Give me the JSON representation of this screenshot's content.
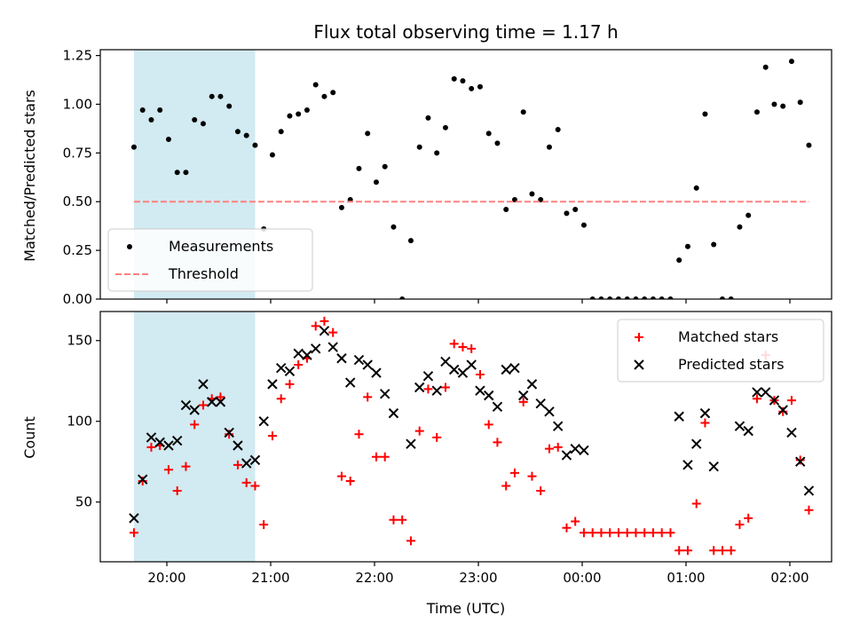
{
  "chart_data": {
    "type": "scatter",
    "title": "Flux total observing time = 1.17 h",
    "xlabel": "Time (UTC)",
    "x_tick_labels": [
      "20:00",
      "21:00",
      "22:00",
      "23:00",
      "00:00",
      "01:00",
      "02:00"
    ],
    "shaded_interval": {
      "start": "19:41",
      "end": "20:51",
      "color": "#add8e6"
    },
    "panels": [
      {
        "ylabel": "Matched/Predicted stars",
        "ylim": [
          0,
          1.28
        ],
        "y_tick_labels": [
          "0.00",
          "0.25",
          "0.50",
          "0.75",
          "1.00",
          "1.25"
        ],
        "legend": {
          "position": "lower-left",
          "entries": [
            "Measurements",
            "Threshold"
          ]
        },
        "series": [
          {
            "name": "Measurements",
            "style": "dot",
            "color": "#000000",
            "points": [
              [
                "19:41",
                0.78
              ],
              [
                "19:46",
                0.97
              ],
              [
                "19:51",
                0.92
              ],
              [
                "19:56",
                0.97
              ],
              [
                "20:01",
                0.82
              ],
              [
                "20:06",
                0.65
              ],
              [
                "20:11",
                0.65
              ],
              [
                "20:16",
                0.92
              ],
              [
                "20:21",
                0.9
              ],
              [
                "20:26",
                1.04
              ],
              [
                "20:31",
                1.04
              ],
              [
                "20:36",
                0.99
              ],
              [
                "20:41",
                0.86
              ],
              [
                "20:46",
                0.84
              ],
              [
                "20:51",
                0.79
              ],
              [
                "20:56",
                0.36
              ],
              [
                "21:01",
                0.74
              ],
              [
                "21:06",
                0.86
              ],
              [
                "21:11",
                0.94
              ],
              [
                "21:16",
                0.95
              ],
              [
                "21:21",
                0.97
              ],
              [
                "21:26",
                1.1
              ],
              [
                "21:31",
                1.04
              ],
              [
                "21:36",
                1.06
              ],
              [
                "21:41",
                0.47
              ],
              [
                "21:46",
                0.51
              ],
              [
                "21:51",
                0.67
              ],
              [
                "21:56",
                0.85
              ],
              [
                "22:01",
                0.6
              ],
              [
                "22:06",
                0.68
              ],
              [
                "22:11",
                0.37
              ],
              [
                "22:16",
                0.0
              ],
              [
                "22:21",
                0.3
              ],
              [
                "22:26",
                0.78
              ],
              [
                "22:31",
                0.93
              ],
              [
                "22:36",
                0.75
              ],
              [
                "22:41",
                0.88
              ],
              [
                "22:46",
                1.13
              ],
              [
                "22:51",
                1.12
              ],
              [
                "22:56",
                1.08
              ],
              [
                "23:01",
                1.09
              ],
              [
                "23:06",
                0.85
              ],
              [
                "23:11",
                0.8
              ],
              [
                "23:16",
                0.46
              ],
              [
                "23:21",
                0.51
              ],
              [
                "23:26",
                0.96
              ],
              [
                "23:31",
                0.54
              ],
              [
                "23:36",
                0.51
              ],
              [
                "23:41",
                0.78
              ],
              [
                "23:46",
                0.87
              ],
              [
                "23:51",
                0.44
              ],
              [
                "23:56",
                0.46
              ],
              [
                "00:01",
                0.38
              ],
              [
                "00:06",
                0.0
              ],
              [
                "00:11",
                0.0
              ],
              [
                "00:16",
                0.0
              ],
              [
                "00:21",
                0.0
              ],
              [
                "00:26",
                0.0
              ],
              [
                "00:31",
                0.0
              ],
              [
                "00:36",
                0.0
              ],
              [
                "00:41",
                0.0
              ],
              [
                "00:46",
                0.0
              ],
              [
                "00:51",
                0.0
              ],
              [
                "00:56",
                0.2
              ],
              [
                "01:01",
                0.27
              ],
              [
                "01:06",
                0.57
              ],
              [
                "01:11",
                0.95
              ],
              [
                "01:16",
                0.28
              ],
              [
                "01:21",
                0.0
              ],
              [
                "01:26",
                0.0
              ],
              [
                "01:31",
                0.37
              ],
              [
                "01:36",
                0.43
              ],
              [
                "01:41",
                0.96
              ],
              [
                "01:46",
                1.19
              ],
              [
                "01:51",
                1.0
              ],
              [
                "01:56",
                0.99
              ],
              [
                "02:01",
                1.22
              ],
              [
                "02:06",
                1.01
              ],
              [
                "02:11",
                0.79
              ]
            ]
          },
          {
            "name": "Threshold",
            "style": "dashed-line",
            "color": "#ff8080",
            "points": [
              [
                "19:41",
                0.5
              ],
              [
                "02:11",
                0.5
              ]
            ]
          }
        ]
      },
      {
        "ylabel": "Count",
        "ylim": [
          13,
          168
        ],
        "y_tick_labels": [
          "50",
          "100",
          "150"
        ],
        "legend": {
          "position": "upper-right",
          "entries": [
            "Matched stars",
            "Predicted stars"
          ]
        },
        "series": [
          {
            "name": "Matched stars",
            "style": "plus",
            "color": "#ff0000",
            "points": [
              [
                "19:41",
                31
              ],
              [
                "19:46",
                63
              ],
              [
                "19:51",
                84
              ],
              [
                "19:56",
                85
              ],
              [
                "20:01",
                70
              ],
              [
                "20:06",
                57
              ],
              [
                "20:11",
                72
              ],
              [
                "20:16",
                98
              ],
              [
                "20:21",
                110
              ],
              [
                "20:26",
                114
              ],
              [
                "20:31",
                115
              ],
              [
                "20:36",
                92
              ],
              [
                "20:41",
                73
              ],
              [
                "20:46",
                62
              ],
              [
                "20:51",
                60
              ],
              [
                "20:56",
                36
              ],
              [
                "21:01",
                91
              ],
              [
                "21:06",
                114
              ],
              [
                "21:11",
                123
              ],
              [
                "21:16",
                135
              ],
              [
                "21:21",
                139
              ],
              [
                "21:26",
                159
              ],
              [
                "21:31",
                162
              ],
              [
                "21:36",
                155
              ],
              [
                "21:41",
                66
              ],
              [
                "21:46",
                63
              ],
              [
                "21:51",
                92
              ],
              [
                "21:56",
                115
              ],
              [
                "22:01",
                78
              ],
              [
                "22:06",
                78
              ],
              [
                "22:11",
                39
              ],
              [
                "22:16",
                39
              ],
              [
                "22:21",
                26
              ],
              [
                "22:26",
                94
              ],
              [
                "22:31",
                120
              ],
              [
                "22:36",
                90
              ],
              [
                "22:41",
                121
              ],
              [
                "22:46",
                148
              ],
              [
                "22:51",
                146
              ],
              [
                "22:56",
                145
              ],
              [
                "23:01",
                129
              ],
              [
                "23:06",
                98
              ],
              [
                "23:11",
                87
              ],
              [
                "23:16",
                60
              ],
              [
                "23:21",
                68
              ],
              [
                "23:26",
                112
              ],
              [
                "23:31",
                66
              ],
              [
                "23:36",
                57
              ],
              [
                "23:41",
                83
              ],
              [
                "23:46",
                84
              ],
              [
                "23:51",
                34
              ],
              [
                "23:56",
                38
              ],
              [
                "00:01",
                31
              ],
              [
                "00:06",
                31
              ],
              [
                "00:11",
                31
              ],
              [
                "00:16",
                31
              ],
              [
                "00:21",
                31
              ],
              [
                "00:26",
                31
              ],
              [
                "00:31",
                31
              ],
              [
                "00:36",
                31
              ],
              [
                "00:41",
                31
              ],
              [
                "00:46",
                31
              ],
              [
                "00:51",
                31
              ],
              [
                "00:56",
                20
              ],
              [
                "01:01",
                20
              ],
              [
                "01:06",
                49
              ],
              [
                "01:11",
                99
              ],
              [
                "01:16",
                20
              ],
              [
                "01:21",
                20
              ],
              [
                "01:26",
                20
              ],
              [
                "01:31",
                36
              ],
              [
                "01:36",
                40
              ],
              [
                "01:41",
                114
              ],
              [
                "01:46",
                141
              ],
              [
                "01:51",
                113
              ],
              [
                "01:56",
                106
              ],
              [
                "02:01",
                113
              ],
              [
                "02:06",
                76
              ],
              [
                "02:11",
                45
              ]
            ]
          },
          {
            "name": "Predicted stars",
            "style": "x",
            "color": "#000000",
            "points": [
              [
                "19:41",
                40
              ],
              [
                "19:46",
                64
              ],
              [
                "19:51",
                90
              ],
              [
                "19:56",
                87
              ],
              [
                "20:01",
                85
              ],
              [
                "20:06",
                88
              ],
              [
                "20:11",
                110
              ],
              [
                "20:16",
                107
              ],
              [
                "20:21",
                123
              ],
              [
                "20:26",
                112
              ],
              [
                "20:31",
                112
              ],
              [
                "20:36",
                93
              ],
              [
                "20:41",
                85
              ],
              [
                "20:46",
                74
              ],
              [
                "20:51",
                76
              ],
              [
                "20:56",
                100
              ],
              [
                "21:01",
                123
              ],
              [
                "21:06",
                133
              ],
              [
                "21:11",
                131
              ],
              [
                "21:16",
                142
              ],
              [
                "21:21",
                141
              ],
              [
                "21:26",
                145
              ],
              [
                "21:31",
                156
              ],
              [
                "21:36",
                146
              ],
              [
                "21:41",
                139
              ],
              [
                "21:46",
                124
              ],
              [
                "21:51",
                138
              ],
              [
                "21:56",
                135
              ],
              [
                "22:01",
                130
              ],
              [
                "22:06",
                117
              ],
              [
                "22:11",
                105
              ],
              [
                "22:21",
                86
              ],
              [
                "22:26",
                121
              ],
              [
                "22:31",
                128
              ],
              [
                "22:36",
                119
              ],
              [
                "22:41",
                137
              ],
              [
                "22:46",
                132
              ],
              [
                "22:51",
                130
              ],
              [
                "22:56",
                135
              ],
              [
                "23:01",
                119
              ],
              [
                "23:06",
                116
              ],
              [
                "23:11",
                109
              ],
              [
                "23:16",
                132
              ],
              [
                "23:21",
                133
              ],
              [
                "23:26",
                116
              ],
              [
                "23:31",
                123
              ],
              [
                "23:36",
                111
              ],
              [
                "23:41",
                106
              ],
              [
                "23:46",
                97
              ],
              [
                "23:51",
                79
              ],
              [
                "23:56",
                83
              ],
              [
                "00:01",
                82
              ],
              [
                "00:56",
                103
              ],
              [
                "01:01",
                73
              ],
              [
                "01:06",
                86
              ],
              [
                "01:11",
                105
              ],
              [
                "01:16",
                72
              ],
              [
                "01:31",
                97
              ],
              [
                "01:36",
                94
              ],
              [
                "01:41",
                118
              ],
              [
                "01:46",
                118
              ],
              [
                "01:51",
                113
              ],
              [
                "01:56",
                107
              ],
              [
                "02:01",
                93
              ],
              [
                "02:06",
                75
              ],
              [
                "02:11",
                57
              ]
            ]
          }
        ]
      }
    ]
  }
}
